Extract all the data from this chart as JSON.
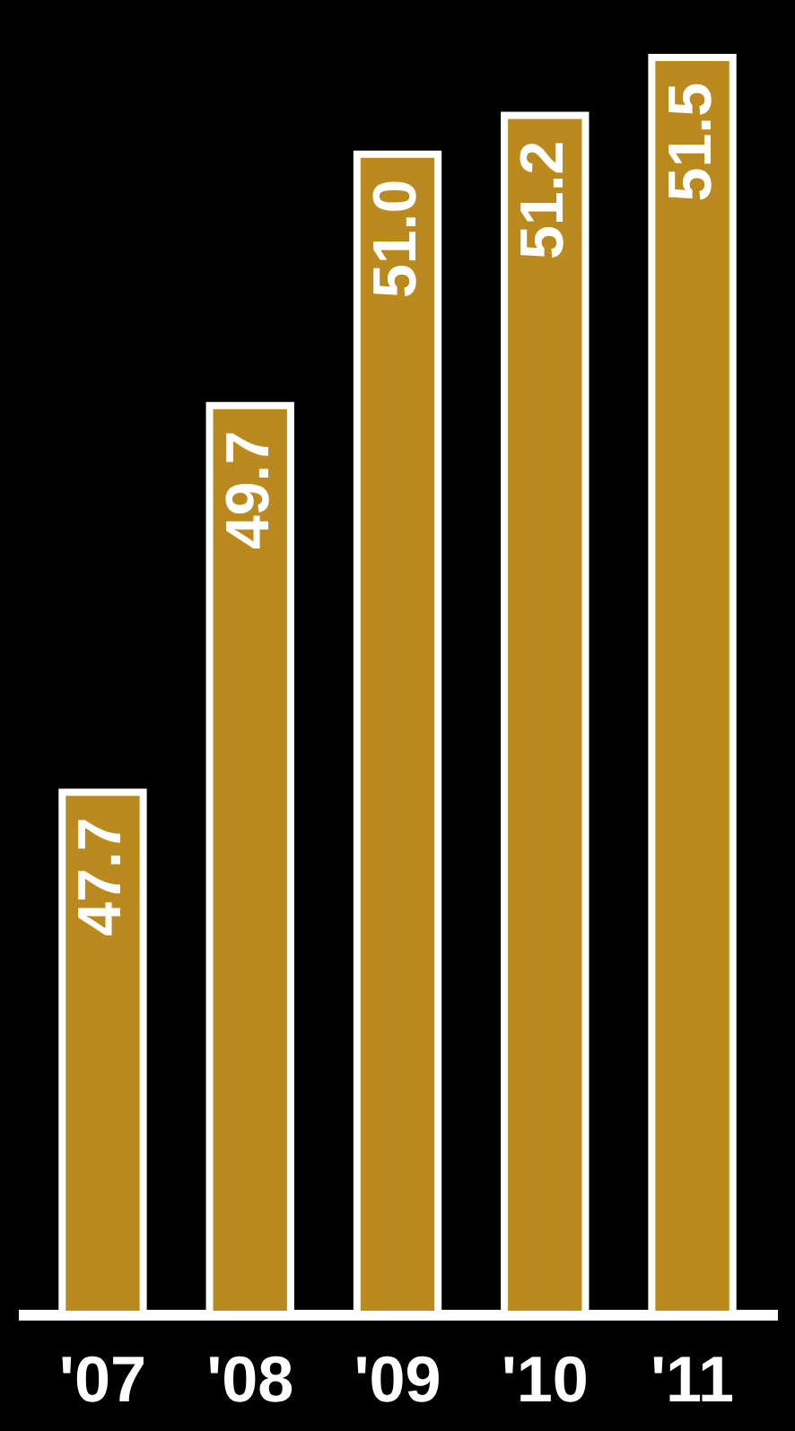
{
  "chart_data": {
    "type": "bar",
    "categories": [
      "'07",
      "'08",
      "'09",
      "'10",
      "'11"
    ],
    "values": [
      47.7,
      49.7,
      51.0,
      51.2,
      51.5
    ],
    "value_labels": [
      "47.7",
      "49.7",
      "51.0",
      "51.2",
      "51.5"
    ],
    "color": "#ba8a1e",
    "ylim": [
      45,
      51.5
    ],
    "tick_labels": "x",
    "grid": false
  }
}
